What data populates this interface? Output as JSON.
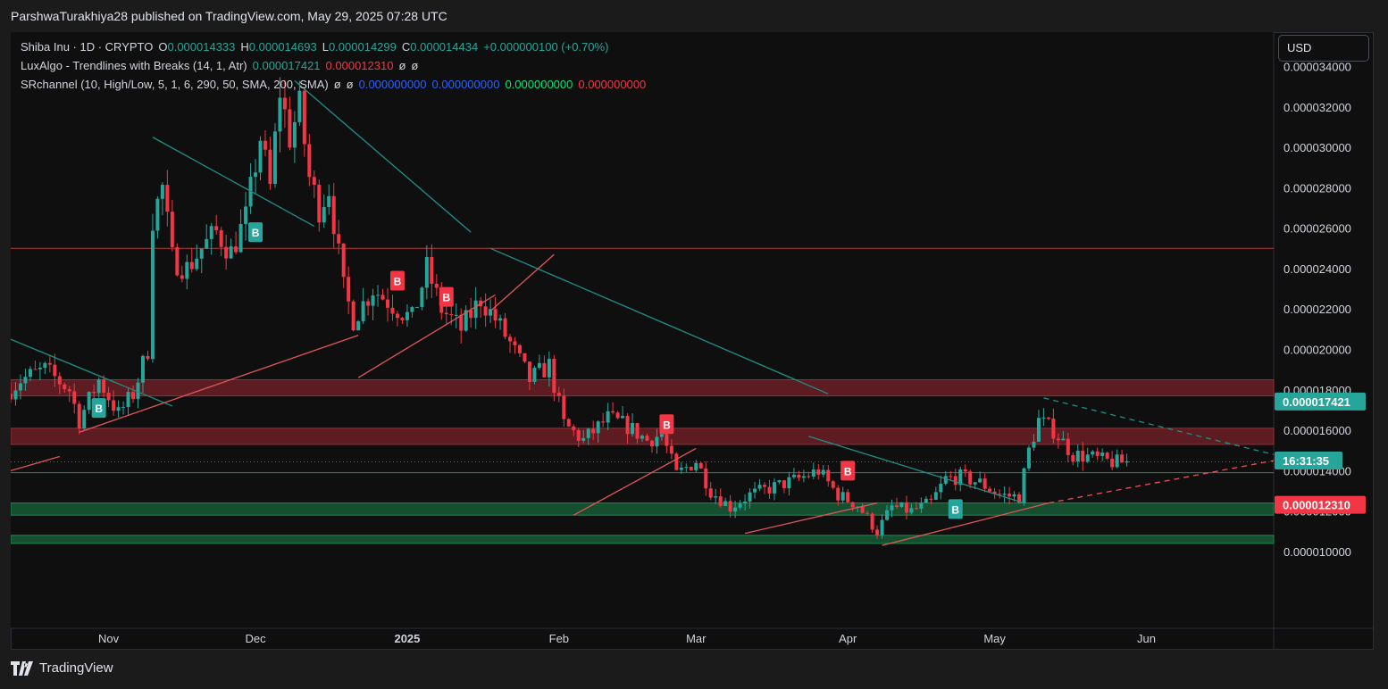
{
  "header": {
    "published": "ParshwaTurakhiya28 published on TradingView.com, May 29, 2025 07:28 UTC"
  },
  "legend": {
    "line1": {
      "symbol": "Shiba Inu · 1D · CRYPTO",
      "o_label": "O",
      "o": "0.000014333",
      "h_label": "H",
      "h": "0.000014693",
      "l_label": "L",
      "l": "0.000014299",
      "c_label": "C",
      "c": "0.000014434",
      "change": "+0.000000100 (+0.70%)"
    },
    "line2": {
      "name": "LuxAlgo - Trendlines with Breaks (14, 1, Atr)",
      "v1": "0.000017421",
      "v2": "0.000012310",
      "v3": "ø",
      "v4": "ø"
    },
    "line3": {
      "name": "SRchannel (10, High/Low, 5, 1, 6, 290, 50, SMA, 200, SMA)",
      "v1": "ø",
      "v2": "ø",
      "v3": "0.000000000",
      "v4": "0.000000000",
      "v5": "0.000000000",
      "v6": "0.000000000"
    }
  },
  "currency_button": "USD",
  "footer": {
    "brand": "TradingView"
  },
  "colors": {
    "up": "#26a69a",
    "down": "#f23645",
    "teal_line": "#1f8f86",
    "red_line": "#e0565b",
    "res_zone": "#6b1f24",
    "sup_zone": "#165b35"
  },
  "chart_data": {
    "type": "candlestick",
    "symbol": "Shiba Inu · 1D · CRYPTO",
    "ylim": [
      6.2e-06,
      3.57e-05
    ],
    "y_ticks": [
      {
        "value": 3.4e-05,
        "label": "0.000034000"
      },
      {
        "value": 3.2e-05,
        "label": "0.000032000"
      },
      {
        "value": 3e-05,
        "label": "0.000030000"
      },
      {
        "value": 2.8e-05,
        "label": "0.000028000"
      },
      {
        "value": 2.6e-05,
        "label": "0.000026000"
      },
      {
        "value": 2.4e-05,
        "label": "0.000024000"
      },
      {
        "value": 2.2e-05,
        "label": "0.000022000"
      },
      {
        "value": 2e-05,
        "label": "0.000020000"
      },
      {
        "value": 1.8e-05,
        "label": "0.000018000"
      },
      {
        "value": 1.6e-05,
        "label": "0.000016000"
      },
      {
        "value": 1.4e-05,
        "label": "0.000014000"
      },
      {
        "value": 1.2e-05,
        "label": "0.000012000"
      },
      {
        "value": 1e-05,
        "label": "0.000010000"
      }
    ],
    "x_range": [
      "2024-10-12",
      "2025-06-27"
    ],
    "x_ticks": [
      {
        "date": "2024-11-01",
        "label": "Nov",
        "bold": false
      },
      {
        "date": "2024-12-01",
        "label": "Dec",
        "bold": false
      },
      {
        "date": "2025-01-01",
        "label": "2025",
        "bold": true
      },
      {
        "date": "2025-02-01",
        "label": "Feb",
        "bold": false
      },
      {
        "date": "2025-03-01",
        "label": "Mar",
        "bold": false
      },
      {
        "date": "2025-04-01",
        "label": "Apr",
        "bold": false
      },
      {
        "date": "2025-05-01",
        "label": "May",
        "bold": false
      },
      {
        "date": "2025-06-01",
        "label": "Jun",
        "bold": false
      }
    ],
    "price_labels": [
      {
        "value": 1.7421e-05,
        "label": "0.000017421",
        "color": "#26a69a"
      },
      {
        "value": 1.45e-05,
        "label": "16:31:35",
        "color": "#26a69a"
      },
      {
        "value": 1.231e-05,
        "label": "0.000012310",
        "color": "#f23645"
      }
    ],
    "current_price": 1.4434e-05,
    "zones": [
      {
        "from": 1.77e-05,
        "to": 1.85e-05,
        "kind": "resistance"
      },
      {
        "from": 1.53e-05,
        "to": 1.61e-05,
        "kind": "resistance"
      },
      {
        "from": 1.18e-05,
        "to": 1.24e-05,
        "kind": "support"
      },
      {
        "from": 1.04e-05,
        "to": 1.08e-05,
        "kind": "support"
      }
    ],
    "horizontal_lines": [
      {
        "value": 2.5e-05,
        "color": "red"
      },
      {
        "value": 1.39e-05,
        "color": "teal"
      }
    ],
    "trendlines": [
      {
        "color": "teal",
        "dashed": false,
        "from": [
          "2024-10-12",
          2.05e-05
        ],
        "to": [
          "2024-11-14",
          1.72e-05
        ]
      },
      {
        "color": "teal",
        "dashed": false,
        "from": [
          "2024-11-10",
          3.05e-05
        ],
        "to": [
          "2024-12-13",
          2.61e-05
        ]
      },
      {
        "color": "teal",
        "dashed": false,
        "from": [
          "2024-12-09",
          3.33e-05
        ],
        "to": [
          "2025-01-14",
          2.58e-05
        ]
      },
      {
        "color": "teal",
        "dashed": false,
        "from": [
          "2025-01-18",
          2.5e-05
        ],
        "to": [
          "2025-03-28",
          1.78e-05
        ]
      },
      {
        "color": "teal",
        "dashed": false,
        "from": [
          "2025-03-24",
          1.57e-05
        ],
        "to": [
          "2025-05-07",
          1.24e-05
        ]
      },
      {
        "color": "teal",
        "dashed": true,
        "from": [
          "2025-05-11",
          1.76e-05
        ],
        "to": [
          "2025-06-27",
          1.48e-05
        ]
      },
      {
        "color": "red",
        "dashed": false,
        "from": [
          "2024-10-12",
          1.4e-05
        ],
        "to": [
          "2024-10-22",
          1.47e-05
        ]
      },
      {
        "color": "red",
        "dashed": false,
        "from": [
          "2024-10-26",
          1.59e-05
        ],
        "to": [
          "2024-12-22",
          2.07e-05
        ]
      },
      {
        "color": "red",
        "dashed": false,
        "from": [
          "2024-12-22",
          1.86e-05
        ],
        "to": [
          "2025-01-19",
          2.27e-05
        ]
      },
      {
        "color": "red",
        "dashed": false,
        "from": [
          "2025-01-18",
          2.19e-05
        ],
        "to": [
          "2025-01-31",
          2.47e-05
        ]
      },
      {
        "color": "red",
        "dashed": false,
        "from": [
          "2025-02-04",
          1.18e-05
        ],
        "to": [
          "2025-03-01",
          1.51e-05
        ]
      },
      {
        "color": "red",
        "dashed": false,
        "from": [
          "2025-03-11",
          1.09e-05
        ],
        "to": [
          "2025-04-07",
          1.24e-05
        ]
      },
      {
        "color": "red",
        "dashed": false,
        "from": [
          "2025-04-08",
          1.03e-05
        ],
        "to": [
          "2025-05-12",
          1.24e-05
        ]
      },
      {
        "color": "red",
        "dashed": true,
        "from": [
          "2025-05-12",
          1.24e-05
        ],
        "to": [
          "2025-06-27",
          1.45e-05
        ]
      }
    ],
    "signals": [
      {
        "date": "2024-10-30",
        "value": 1.71e-05,
        "label": "B",
        "color": "#26a69a"
      },
      {
        "date": "2024-12-01",
        "value": 2.58e-05,
        "label": "B",
        "color": "#26a69a"
      },
      {
        "date": "2024-12-30",
        "value": 2.34e-05,
        "label": "B",
        "color": "#f23645"
      },
      {
        "date": "2025-01-09",
        "value": 2.26e-05,
        "label": "B",
        "color": "#f23645"
      },
      {
        "date": "2025-02-23",
        "value": 1.63e-05,
        "label": "B",
        "color": "#f23645"
      },
      {
        "date": "2025-04-01",
        "value": 1.4e-05,
        "label": "B",
        "color": "#f23645"
      },
      {
        "date": "2025-04-23",
        "value": 1.21e-05,
        "label": "B",
        "color": "#26a69a"
      }
    ],
    "closes": [
      {
        "date": "2024-10-12",
        "close": 1.78e-05
      },
      {
        "date": "2024-10-15",
        "close": 1.85e-05
      },
      {
        "date": "2024-10-20",
        "close": 1.9e-05
      },
      {
        "date": "2024-10-25",
        "close": 1.8e-05
      },
      {
        "date": "2024-10-27",
        "close": 1.65e-05
      },
      {
        "date": "2024-10-31",
        "close": 1.85e-05
      },
      {
        "date": "2024-11-04",
        "close": 1.68e-05
      },
      {
        "date": "2024-11-07",
        "close": 1.78e-05
      },
      {
        "date": "2024-11-10",
        "close": 2e-05
      },
      {
        "date": "2024-11-11",
        "close": 2.65e-05
      },
      {
        "date": "2024-11-13",
        "close": 2.8e-05
      },
      {
        "date": "2024-11-15",
        "close": 2.45e-05
      },
      {
        "date": "2024-11-18",
        "close": 2.4e-05
      },
      {
        "date": "2024-11-21",
        "close": 2.5e-05
      },
      {
        "date": "2024-11-24",
        "close": 2.58e-05
      },
      {
        "date": "2024-11-27",
        "close": 2.48e-05
      },
      {
        "date": "2024-11-30",
        "close": 2.65e-05
      },
      {
        "date": "2024-12-03",
        "close": 3.05e-05
      },
      {
        "date": "2024-12-05",
        "close": 2.8e-05
      },
      {
        "date": "2024-12-07",
        "close": 3.28e-05
      },
      {
        "date": "2024-12-09",
        "close": 3.05e-05
      },
      {
        "date": "2024-12-11",
        "close": 3.2e-05
      },
      {
        "date": "2024-12-13",
        "close": 2.85e-05
      },
      {
        "date": "2024-12-15",
        "close": 2.7e-05
      },
      {
        "date": "2024-12-17",
        "close": 2.8e-05
      },
      {
        "date": "2024-12-20",
        "close": 2.3e-05
      },
      {
        "date": "2024-12-22",
        "close": 2.15e-05
      },
      {
        "date": "2024-12-26",
        "close": 2.3e-05
      },
      {
        "date": "2024-12-30",
        "close": 2.22e-05
      },
      {
        "date": "2025-01-03",
        "close": 2.15e-05
      },
      {
        "date": "2025-01-06",
        "close": 2.4e-05
      },
      {
        "date": "2025-01-09",
        "close": 2.2e-05
      },
      {
        "date": "2025-01-13",
        "close": 2.1e-05
      },
      {
        "date": "2025-01-17",
        "close": 2.25e-05
      },
      {
        "date": "2025-01-20",
        "close": 2.15e-05
      },
      {
        "date": "2025-01-23",
        "close": 2.03e-05
      },
      {
        "date": "2025-01-27",
        "close": 1.85e-05
      },
      {
        "date": "2025-01-31",
        "close": 1.92e-05
      },
      {
        "date": "2025-02-03",
        "close": 1.63e-05
      },
      {
        "date": "2025-02-07",
        "close": 1.55e-05
      },
      {
        "date": "2025-02-12",
        "close": 1.66e-05
      },
      {
        "date": "2025-02-16",
        "close": 1.62e-05
      },
      {
        "date": "2025-02-20",
        "close": 1.55e-05
      },
      {
        "date": "2025-02-23",
        "close": 1.58e-05
      },
      {
        "date": "2025-02-26",
        "close": 1.38e-05
      },
      {
        "date": "2025-03-02",
        "close": 1.45e-05
      },
      {
        "date": "2025-03-05",
        "close": 1.3e-05
      },
      {
        "date": "2025-03-09",
        "close": 1.22e-05
      },
      {
        "date": "2025-03-13",
        "close": 1.28e-05
      },
      {
        "date": "2025-03-18",
        "close": 1.32e-05
      },
      {
        "date": "2025-03-23",
        "close": 1.36e-05
      },
      {
        "date": "2025-03-27",
        "close": 1.4e-05
      },
      {
        "date": "2025-03-31",
        "close": 1.28e-05
      },
      {
        "date": "2025-04-04",
        "close": 1.23e-05
      },
      {
        "date": "2025-04-08",
        "close": 1.1e-05
      },
      {
        "date": "2025-04-11",
        "close": 1.22e-05
      },
      {
        "date": "2025-04-15",
        "close": 1.2e-05
      },
      {
        "date": "2025-04-19",
        "close": 1.24e-05
      },
      {
        "date": "2025-04-22",
        "close": 1.36e-05
      },
      {
        "date": "2025-04-25",
        "close": 1.37e-05
      },
      {
        "date": "2025-04-29",
        "close": 1.34e-05
      },
      {
        "date": "2025-05-03",
        "close": 1.28e-05
      },
      {
        "date": "2025-05-07",
        "close": 1.27e-05
      },
      {
        "date": "2025-05-09",
        "close": 1.5e-05
      },
      {
        "date": "2025-05-11",
        "close": 1.65e-05
      },
      {
        "date": "2025-05-14",
        "close": 1.6e-05
      },
      {
        "date": "2025-05-18",
        "close": 1.48e-05
      },
      {
        "date": "2025-05-21",
        "close": 1.47e-05
      },
      {
        "date": "2025-05-24",
        "close": 1.45e-05
      },
      {
        "date": "2025-05-27",
        "close": 1.44e-05
      },
      {
        "date": "2025-05-29",
        "close": 1.4434e-05
      }
    ]
  }
}
